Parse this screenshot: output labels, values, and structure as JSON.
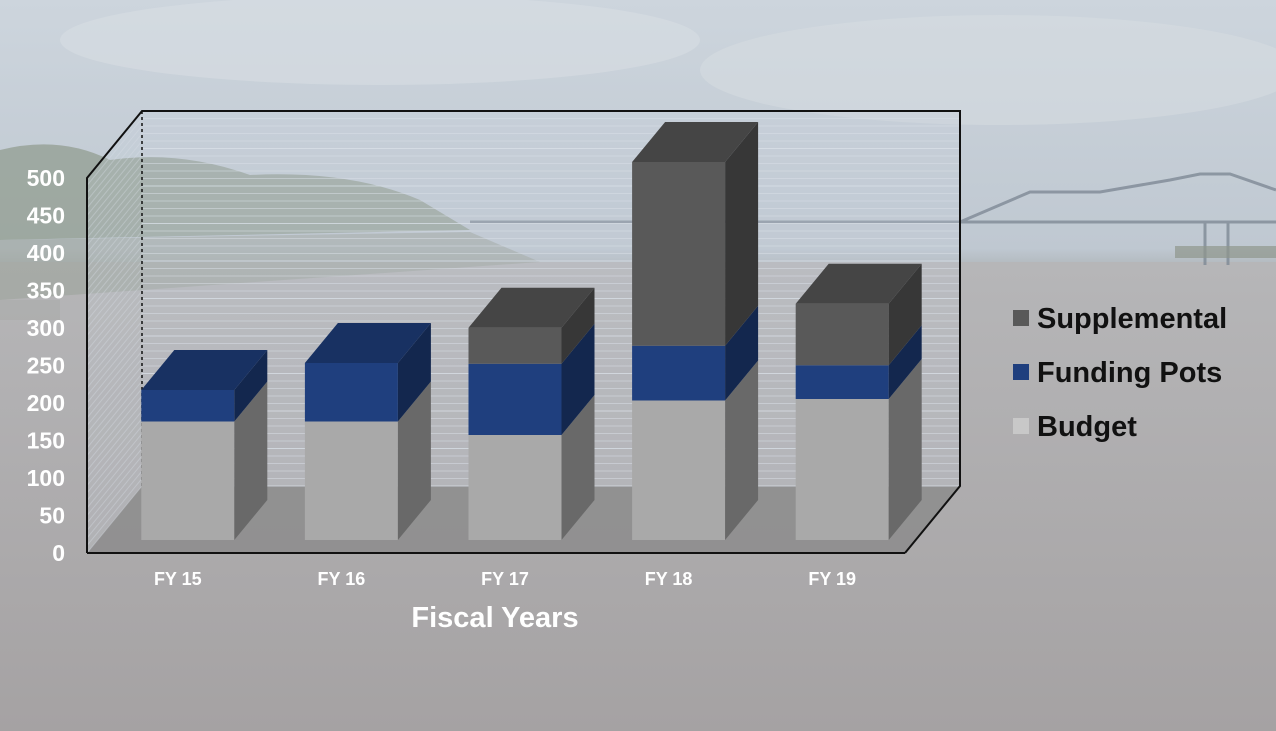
{
  "chart_data": {
    "type": "bar",
    "stacked": true,
    "three_d": true,
    "categories": [
      "FY 15",
      "FY 16",
      "FY 17",
      "FY 18",
      "FY 19"
    ],
    "series": [
      {
        "name": "Budget",
        "values": [
          158,
          158,
          140,
          186,
          188
        ],
        "color": "#a9a9a9"
      },
      {
        "name": "Funding Pots",
        "values": [
          42,
          78,
          95,
          73,
          45
        ],
        "color": "#1f3f7e"
      },
      {
        "name": "Supplemental",
        "values": [
          0,
          0,
          48,
          245,
          82
        ],
        "color": "#595959"
      }
    ],
    "xlabel": "Fiscal Years",
    "ylabel": "",
    "ylim": [
      0,
      500
    ],
    "yticks": [
      "0",
      "50",
      "100",
      "150",
      "200",
      "250",
      "300",
      "350",
      "400",
      "450",
      "500"
    ],
    "legend": [
      "Supplemental",
      "Funding Pots",
      "Budget"
    ],
    "legend_position": "right",
    "grid": true,
    "background": "photo of a river with a bridge"
  }
}
